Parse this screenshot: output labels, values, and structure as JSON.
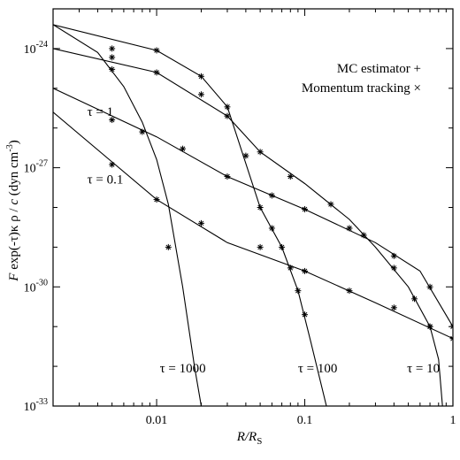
{
  "chart_data": {
    "type": "line",
    "xlabel": "R/R",
    "xlabel_sub": "S",
    "ylabel_parts": [
      "F",
      " exp(-τ)κ ρ / ",
      "c",
      " (dyn cm",
      "-3",
      ")"
    ],
    "x_scale": "log",
    "y_scale": "log",
    "xlim": [
      0.002,
      1
    ],
    "ylim": [
      1e-33,
      1e-23
    ],
    "x_ticks": [
      {
        "value": 0.01,
        "label": "0.01"
      },
      {
        "value": 0.1,
        "label": "0.1"
      },
      {
        "value": 1,
        "label": "1"
      }
    ],
    "y_ticks": [
      {
        "value": 1e-24,
        "base": "10",
        "exp": "-24"
      },
      {
        "value": 1e-27,
        "base": "10",
        "exp": "-27"
      },
      {
        "value": 1e-30,
        "base": "10",
        "exp": "-30"
      },
      {
        "value": 1e-33,
        "base": "10",
        "exp": "-33"
      }
    ],
    "legend": {
      "placement": "top-right",
      "entries": [
        "MC estimator +",
        "Momentum tracking ×"
      ]
    },
    "series": [
      {
        "name": "τ = 0.1",
        "label_pos": [
          0.0034,
          4e-28
        ],
        "curve": [
          [
            0.002,
            2.5e-26
          ],
          [
            0.01,
            1.58e-28
          ],
          [
            0.03,
            1.3e-29
          ],
          [
            0.1,
            2.5e-30
          ],
          [
            0.3,
            4e-31
          ],
          [
            1,
            5e-32
          ]
        ],
        "markers": [
          [
            0.005,
            1.2e-27
          ],
          [
            0.01,
            1.58e-28
          ],
          [
            0.02,
            4e-29
          ],
          [
            0.05,
            1e-29
          ],
          [
            0.1,
            2.5e-30
          ],
          [
            0.2,
            8e-31
          ],
          [
            0.4,
            3e-31
          ],
          [
            0.7,
            1e-31
          ],
          [
            1,
            5e-32
          ]
        ]
      },
      {
        "name": "τ = 1",
        "label_pos": [
          0.0034,
          2e-26
        ],
        "curve": [
          [
            0.002,
            1e-25
          ],
          [
            0.01,
            6e-27
          ],
          [
            0.03,
            6e-28
          ],
          [
            0.1,
            9e-29
          ],
          [
            0.3,
            1.3e-29
          ],
          [
            0.6,
            2.5e-30
          ],
          [
            1,
            1e-31
          ]
        ],
        "markers": [
          [
            0.005,
            1.6e-26
          ],
          [
            0.008,
            8e-27
          ],
          [
            0.015,
            3e-27
          ],
          [
            0.03,
            6e-28
          ],
          [
            0.06,
            2e-28
          ],
          [
            0.1,
            9e-29
          ],
          [
            0.2,
            3e-29
          ],
          [
            0.4,
            6e-30
          ],
          [
            0.7,
            1e-30
          ],
          [
            1,
            1e-31
          ]
        ]
      },
      {
        "name": "τ = 10",
        "label_pos": [
          0.49,
          7e-33
        ],
        "curve": [
          [
            0.002,
            1e-24
          ],
          [
            0.01,
            2.5e-25
          ],
          [
            0.03,
            2e-26
          ],
          [
            0.05,
            2.5e-27
          ],
          [
            0.1,
            4e-28
          ],
          [
            0.2,
            5e-29
          ],
          [
            0.3,
            1e-29
          ],
          [
            0.5,
            1e-30
          ],
          [
            0.7,
            1e-31
          ],
          [
            0.8,
            1.5e-32
          ],
          [
            0.85,
            1e-33
          ]
        ],
        "markers": [
          [
            0.005,
            6e-25
          ],
          [
            0.01,
            2.5e-25
          ],
          [
            0.02,
            7e-26
          ],
          [
            0.03,
            2e-26
          ],
          [
            0.05,
            2.5e-27
          ],
          [
            0.08,
            6e-28
          ],
          [
            0.15,
            1.2e-28
          ],
          [
            0.25,
            2e-29
          ],
          [
            0.4,
            3e-30
          ],
          [
            0.55,
            5e-31
          ],
          [
            0.7,
            1e-31
          ]
        ]
      },
      {
        "name": "τ = 100",
        "label_pos": [
          0.09,
          7e-33
        ],
        "curve": [
          [
            0.002,
            4e-24
          ],
          [
            0.01,
            9e-25
          ],
          [
            0.02,
            2e-25
          ],
          [
            0.03,
            3.4e-26
          ],
          [
            0.05,
            1e-28
          ],
          [
            0.07,
            1e-29
          ],
          [
            0.09,
            8e-31
          ],
          [
            0.11,
            4e-32
          ],
          [
            0.14,
            1e-33
          ]
        ],
        "markers": [
          [
            0.005,
            1e-24
          ],
          [
            0.01,
            9e-25
          ],
          [
            0.02,
            2e-25
          ],
          [
            0.03,
            3.4e-26
          ],
          [
            0.04,
            2e-27
          ],
          [
            0.05,
            1e-28
          ],
          [
            0.06,
            3e-29
          ],
          [
            0.07,
            1e-29
          ],
          [
            0.08,
            3e-30
          ],
          [
            0.09,
            8e-31
          ],
          [
            0.1,
            2e-31
          ]
        ]
      },
      {
        "name": "τ = 1000",
        "label_pos": [
          0.0105,
          7e-33
        ],
        "curve": [
          [
            0.002,
            4e-24
          ],
          [
            0.004,
            8e-25
          ],
          [
            0.006,
            1.1e-25
          ],
          [
            0.008,
            1.4e-26
          ],
          [
            0.01,
            1.6e-27
          ],
          [
            0.012,
            1.2e-28
          ],
          [
            0.015,
            1e-30
          ],
          [
            0.018,
            1e-32
          ],
          [
            0.02,
            1e-33
          ]
        ],
        "markers": [
          [
            0.005,
            3e-25
          ],
          [
            0.012,
            1e-29
          ]
        ]
      }
    ]
  }
}
